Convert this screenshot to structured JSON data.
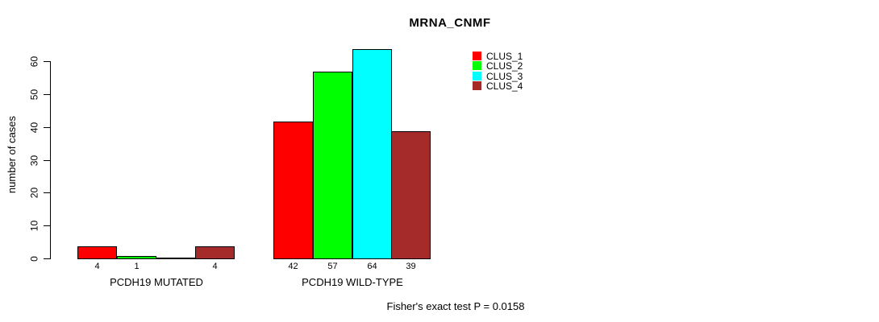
{
  "chart_data": {
    "type": "bar",
    "title": "MRNA_CNMF",
    "ylabel": "number of cases",
    "xlabel": "",
    "ylim": [
      0,
      64
    ],
    "yticks": [
      0,
      10,
      20,
      30,
      40,
      50,
      60
    ],
    "grid": false,
    "legend_position": "top-right",
    "legend": [
      {
        "label": "CLUS_1",
        "color": "#ff0000"
      },
      {
        "label": "CLUS_2",
        "color": "#00ff00"
      },
      {
        "label": "CLUS_3",
        "color": "#00ffff"
      },
      {
        "label": "CLUS_4",
        "color": "#a52a2a"
      }
    ],
    "groups": [
      {
        "label": "PCDH19 MUTATED",
        "values": [
          4,
          1,
          0,
          4
        ],
        "bar_labels": [
          "4",
          "1",
          "",
          "4"
        ]
      },
      {
        "label": "PCDH19 WILD-TYPE",
        "values": [
          42,
          57,
          64,
          39
        ],
        "bar_labels": [
          "42",
          "57",
          "64",
          "39"
        ]
      }
    ],
    "footnote": "Fisher's exact test P = 0.0158"
  }
}
